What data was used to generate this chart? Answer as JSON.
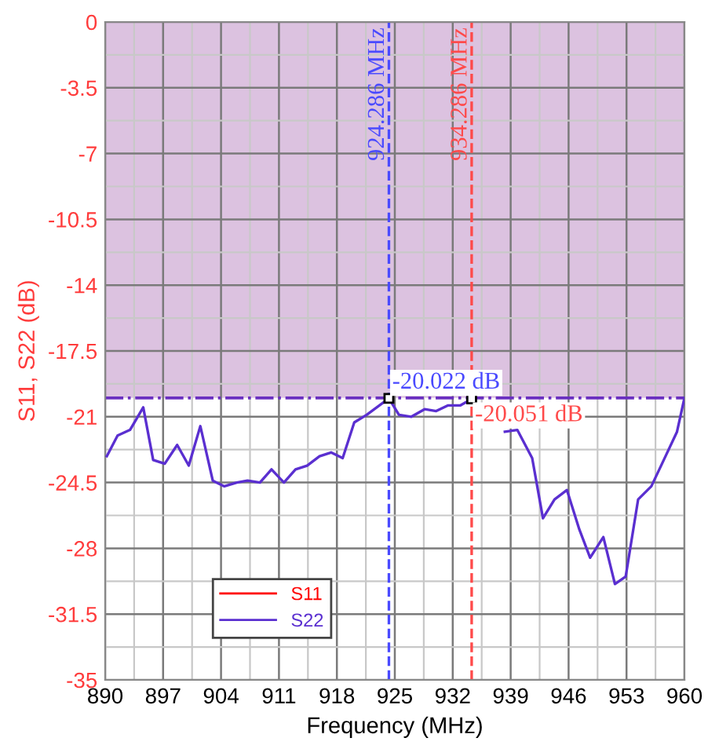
{
  "chart_data": {
    "type": "line",
    "xlabel": "Frequency (MHz)",
    "ylabel": "S11, S22 (dB)",
    "xlim": [
      890,
      960
    ],
    "xticks": [
      890,
      897,
      904,
      911,
      918,
      925,
      932,
      939,
      946,
      953,
      960
    ],
    "ylim": [
      -35,
      0
    ],
    "yticks": [
      -35,
      -31.5,
      -28,
      -24.5,
      -21,
      -17.5,
      -14,
      -10.5,
      -7,
      -3.5,
      0
    ],
    "grid": true,
    "legend": "bottom left",
    "marker": "none",
    "line_style": "solid",
    "x": [
      890.2,
      891.5,
      893.0,
      894.6,
      895.8,
      897.2,
      898.7,
      900.1,
      901.5,
      903.0,
      904.4,
      905.9,
      907.2,
      908.7,
      910.1,
      911.6,
      913.0,
      914.4,
      915.9,
      917.3,
      918.7,
      920.1,
      921.6,
      924.286,
      925.5,
      927.0,
      928.6,
      930.0,
      931.4,
      932.9,
      934.286,
      936.3,
      938.3,
      939.8,
      941.6,
      942.9,
      944.3,
      945.8,
      947.3,
      948.6,
      950.2,
      951.6,
      952.9,
      954.4,
      956.0,
      957.5,
      959.1,
      960.0
    ],
    "series": [
      {
        "name": "S11",
        "color": "#ff0000",
        "values": [
          null,
          null,
          null,
          null,
          null,
          null,
          null,
          null,
          null,
          null,
          null,
          null,
          null,
          null,
          null,
          null,
          null,
          null,
          null,
          null,
          null,
          null,
          null,
          null,
          null,
          null,
          null,
          null,
          null,
          null,
          null,
          null,
          null,
          null,
          null,
          null,
          null,
          null,
          null,
          null,
          null,
          null,
          null,
          null,
          null,
          null,
          null,
          null
        ]
      },
      {
        "name": "S22",
        "color": "#5a2fd0",
        "values": [
          -23.1,
          -22.0,
          -21.7,
          -20.5,
          -23.3,
          -23.5,
          -22.5,
          -23.6,
          -21.5,
          -24.4,
          -24.7,
          -24.5,
          -24.4,
          -24.5,
          -23.8,
          -24.5,
          -23.8,
          -23.6,
          -23.1,
          -22.9,
          -23.2,
          -21.3,
          -20.9,
          -20.022,
          -20.9,
          -21.0,
          -20.6,
          -20.7,
          -20.4,
          -20.4,
          -20.051,
          null,
          -21.8,
          -21.7,
          -23.2,
          -26.4,
          -25.4,
          -24.9,
          -27.0,
          -28.5,
          -27.4,
          -29.9,
          -29.5,
          -25.4,
          -24.7,
          -23.3,
          -21.8,
          -20.0
        ]
      }
    ],
    "ref_lines": [
      {
        "axis": "x",
        "value": 924.286,
        "label": "924.286 MHz",
        "color": "#4a4aff",
        "line_style": "dashed"
      },
      {
        "axis": "x",
        "value": 934.286,
        "label": "934.286 MHz",
        "color": "#ff4a4a",
        "line_style": "dashed"
      },
      {
        "axis": "y",
        "value": -20,
        "color": "#6a2fc0",
        "line_style": "dashdot"
      }
    ],
    "bands": [
      {
        "axis": "y",
        "from": -20,
        "to": 0,
        "color": "#dcc2e0"
      }
    ],
    "annotations": [
      {
        "text": "-20.022 dB",
        "x": 924.286,
        "y": -20.022
      },
      {
        "text": "-20.051 dB",
        "x": 934.286,
        "y": -20.051
      }
    ]
  }
}
